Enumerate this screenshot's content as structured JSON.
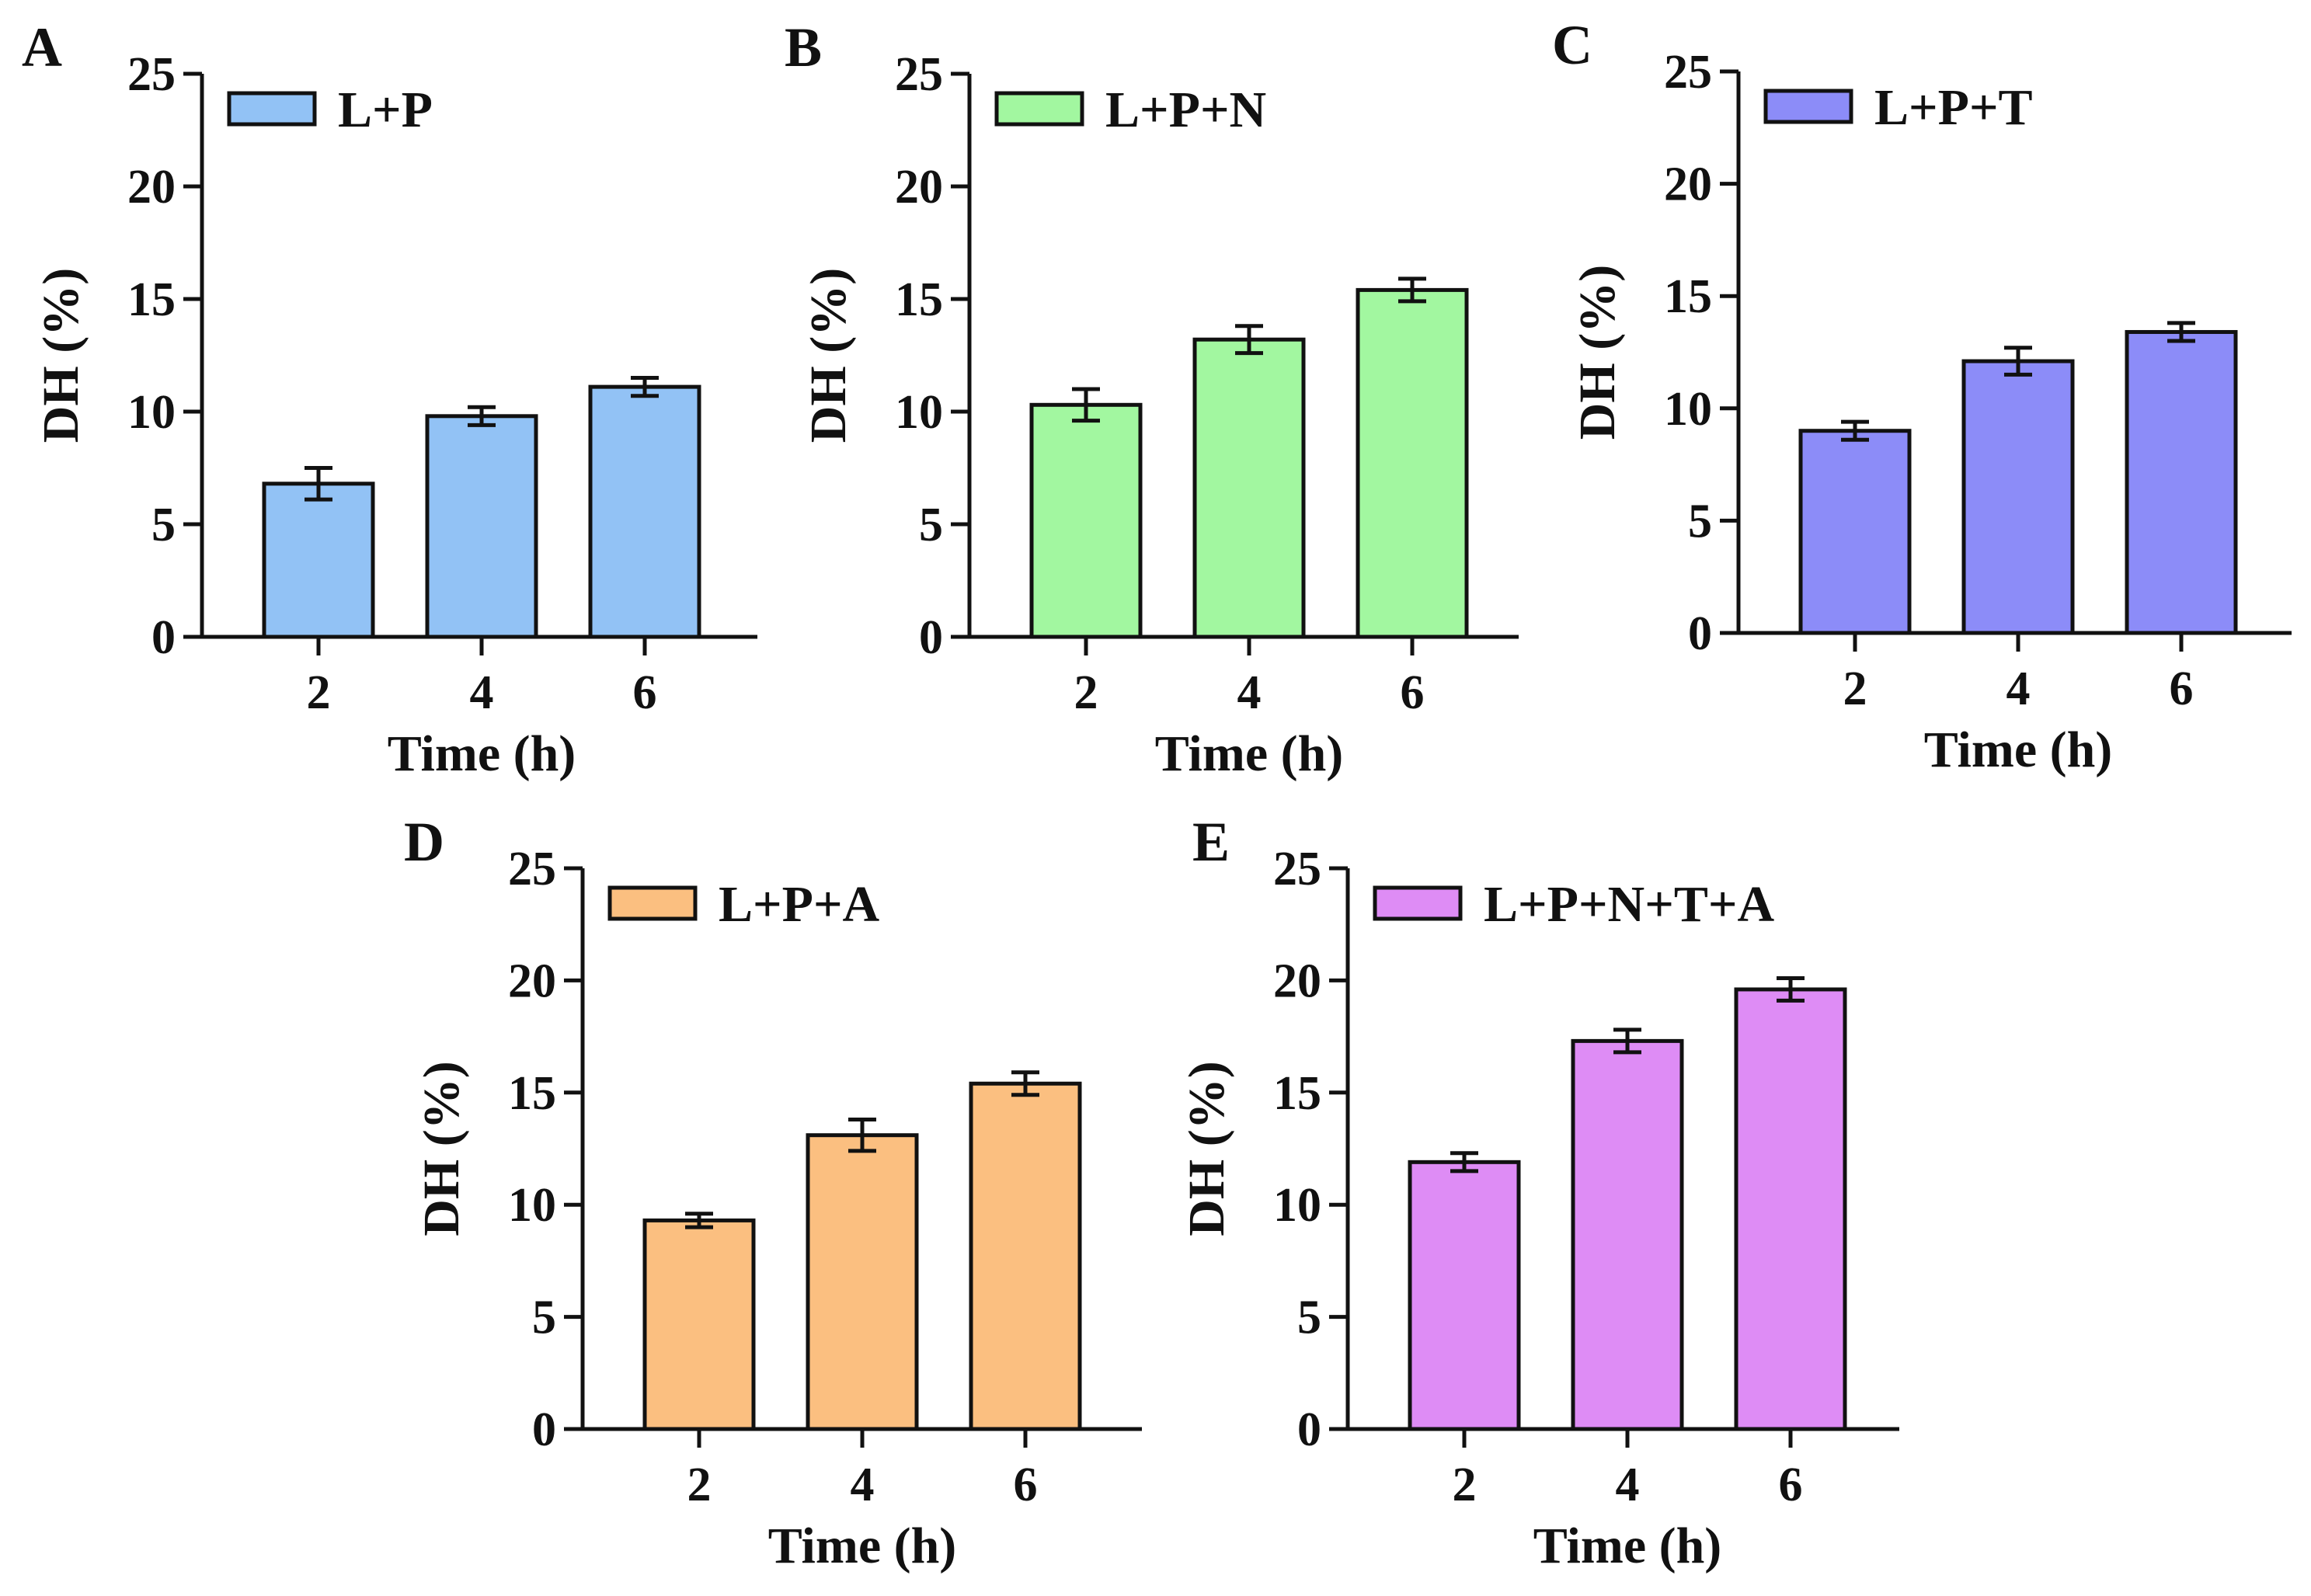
{
  "figure": {
    "background": "#ffffff",
    "axis_color": "#111111"
  },
  "chart_data": [
    {
      "panel": "A",
      "type": "bar",
      "legend": "L+P",
      "color": "#92C2F5",
      "categories": [
        "2",
        "4",
        "6"
      ],
      "values": [
        6.8,
        9.8,
        11.1
      ],
      "errors": [
        0.7,
        0.4,
        0.4
      ],
      "xlabel": "Time (h)",
      "ylabel": "DH (%)",
      "ylim": [
        0,
        25
      ],
      "yticks": [
        "0",
        "5",
        "10",
        "15",
        "20",
        "25"
      ],
      "legend_position": "top-left",
      "grid": false
    },
    {
      "panel": "B",
      "type": "bar",
      "legend": "L+P+N",
      "color": "#A2F7A0",
      "categories": [
        "2",
        "4",
        "6"
      ],
      "values": [
        10.3,
        13.2,
        15.4
      ],
      "errors": [
        0.7,
        0.6,
        0.5
      ],
      "xlabel": "Time (h)",
      "ylabel": "DH (%)",
      "ylim": [
        0,
        25
      ],
      "yticks": [
        "0",
        "5",
        "10",
        "15",
        "20",
        "25"
      ],
      "legend_position": "top-left",
      "grid": false
    },
    {
      "panel": "C",
      "type": "bar",
      "legend": "L+P+T",
      "color": "#8C8CF8",
      "categories": [
        "2",
        "4",
        "6"
      ],
      "values": [
        9.0,
        12.1,
        13.4
      ],
      "errors": [
        0.4,
        0.6,
        0.4
      ],
      "xlabel": "Time (h)",
      "ylabel": "DH (%)",
      "ylim": [
        0,
        25
      ],
      "yticks": [
        "0",
        "5",
        "10",
        "15",
        "20",
        "25"
      ],
      "legend_position": "top-left",
      "grid": false
    },
    {
      "panel": "D",
      "type": "bar",
      "legend": "L+P+A",
      "color": "#FBBF80",
      "categories": [
        "2",
        "4",
        "6"
      ],
      "values": [
        9.3,
        13.1,
        15.4
      ],
      "errors": [
        0.3,
        0.7,
        0.5
      ],
      "xlabel": "Time (h)",
      "ylabel": "DH (%)",
      "ylim": [
        0,
        25
      ],
      "yticks": [
        "0",
        "5",
        "10",
        "15",
        "20",
        "25"
      ],
      "legend_position": "top-left",
      "grid": false
    },
    {
      "panel": "E",
      "type": "bar",
      "legend": "L+P+N+T+A",
      "color": "#DE8CF5",
      "categories": [
        "2",
        "4",
        "6"
      ],
      "values": [
        11.9,
        17.3,
        19.6
      ],
      "errors": [
        0.4,
        0.5,
        0.5
      ],
      "xlabel": "Time (h)",
      "ylabel": "DH (%)",
      "ylim": [
        0,
        25
      ],
      "yticks": [
        "0",
        "5",
        "10",
        "15",
        "20",
        "25"
      ],
      "legend_position": "top-left",
      "grid": false
    }
  ]
}
